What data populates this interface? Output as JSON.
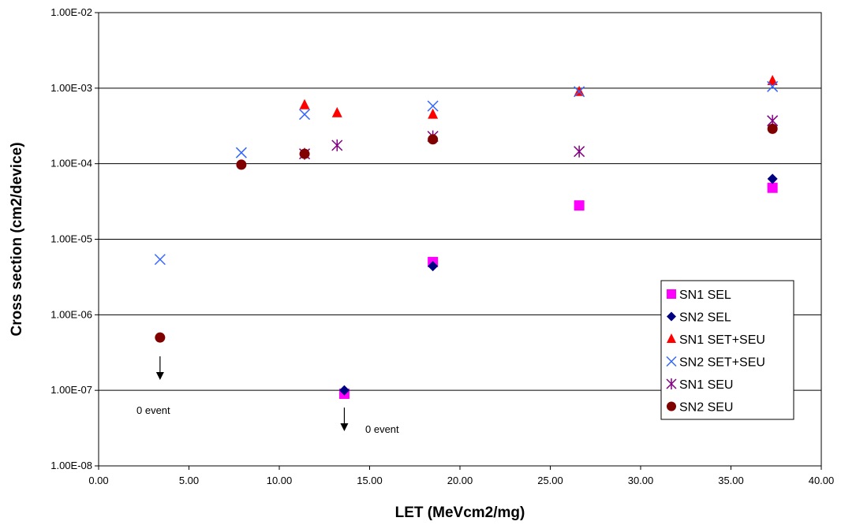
{
  "chart_data": {
    "type": "scatter",
    "xlabel": "LET (MeVcm2/mg)",
    "ylabel": "Cross section (cm2/device)",
    "xlim": [
      0,
      40
    ],
    "ylim": [
      1e-08,
      0.01
    ],
    "y_scale": "log",
    "grid": "horizontal major gridlines",
    "legend_position": "bottom-right",
    "x_tick_labels": [
      "0.00",
      "5.00",
      "10.00",
      "15.00",
      "20.00",
      "25.00",
      "30.00",
      "35.00",
      "40.00"
    ],
    "y_tick_labels": [
      "1.00E-08",
      "1.00E-07",
      "1.00E-06",
      "1.00E-05",
      "1.00E-04",
      "1.00E-03",
      "1.00E-02"
    ],
    "series": [
      {
        "name": "SN1 SEL",
        "marker": "square",
        "color": "#ff00ff",
        "points": [
          [
            13.6,
            9e-08
          ],
          [
            18.5,
            5e-06
          ],
          [
            26.6,
            2.8e-05
          ],
          [
            37.3,
            4.8e-05
          ]
        ]
      },
      {
        "name": "SN2 SEL",
        "marker": "diamond",
        "color": "#000080",
        "points": [
          [
            13.6,
            1e-07
          ],
          [
            18.5,
            4.4e-06
          ],
          [
            37.3,
            6.3e-05
          ]
        ]
      },
      {
        "name": "SN1 SET+SEU",
        "marker": "triangle",
        "color": "#ff0000",
        "points": [
          [
            11.4,
            0.0006
          ],
          [
            13.2,
            0.00047
          ],
          [
            18.5,
            0.00045
          ],
          [
            26.6,
            0.0009
          ],
          [
            37.3,
            0.00125
          ]
        ]
      },
      {
        "name": "SN2 SET+SEU",
        "marker": "x",
        "color": "#3366ff",
        "points": [
          [
            3.4,
            5.4e-06
          ],
          [
            7.9,
            0.00014
          ],
          [
            11.4,
            0.00045
          ],
          [
            18.5,
            0.00058
          ],
          [
            26.6,
            0.0009
          ],
          [
            37.3,
            0.00105
          ]
        ]
      },
      {
        "name": "SN1 SEU",
        "marker": "star",
        "color": "#800080",
        "points": [
          [
            11.4,
            0.000135
          ],
          [
            13.2,
            0.000175
          ],
          [
            18.5,
            0.00023
          ],
          [
            26.6,
            0.000145
          ],
          [
            37.3,
            0.00037
          ]
        ]
      },
      {
        "name": "SN2 SEU",
        "marker": "circle",
        "color": "#800000",
        "points": [
          [
            3.4,
            5e-07
          ],
          [
            7.9,
            9.7e-05
          ],
          [
            11.4,
            0.000135
          ],
          [
            18.5,
            0.00021
          ],
          [
            37.3,
            0.00029
          ]
        ]
      }
    ],
    "annotations": [
      {
        "text": "0 event",
        "x": 3.4
      },
      {
        "text": "0 event",
        "x": 13.6
      }
    ]
  }
}
